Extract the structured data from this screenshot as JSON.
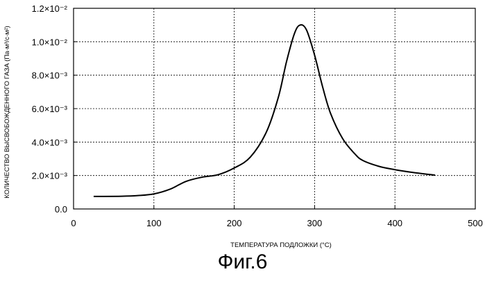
{
  "figure_caption": "Фиг.6",
  "chart_data": {
    "type": "line",
    "xlabel": "ТЕМПЕРАТУРА ПОДЛОЖКИ (°C)",
    "ylabel": "КОЛИЧЕСТВО ВЫСВОБОЖДЕННОГО ГАЗА (Па·м³/с·м²)",
    "xlim": [
      0,
      500
    ],
    "ylim": [
      0,
      0.012
    ],
    "x_ticks": [
      0,
      100,
      200,
      300,
      400,
      500
    ],
    "y_ticks": [
      0,
      0.002,
      0.004,
      0.006,
      0.008,
      0.01,
      0.012
    ],
    "x_tick_labels": [
      "0",
      "100",
      "200",
      "300",
      "400",
      "500"
    ],
    "y_tick_labels": [
      "0.0",
      "2.0×10⁻³",
      "4.0×10⁻³",
      "6.0×10⁻³",
      "8.0×10⁻³",
      "1.0×10⁻²",
      "1.2×10⁻²"
    ],
    "grid": true,
    "series": [
      {
        "x": [
          25,
          60,
          80,
          100,
          120,
          140,
          160,
          180,
          200,
          220,
          240,
          255,
          265,
          275,
          282,
          290,
          300,
          310,
          320,
          335,
          350,
          360,
          380,
          400,
          420,
          450
        ],
        "y": [
          0.00075,
          0.00076,
          0.0008,
          0.0009,
          0.00118,
          0.00165,
          0.0019,
          0.00205,
          0.00245,
          0.0031,
          0.0046,
          0.0067,
          0.0088,
          0.0105,
          0.011,
          0.0107,
          0.0092,
          0.0073,
          0.0057,
          0.0042,
          0.0033,
          0.0029,
          0.00255,
          0.00235,
          0.0022,
          0.00202
        ]
      }
    ]
  }
}
